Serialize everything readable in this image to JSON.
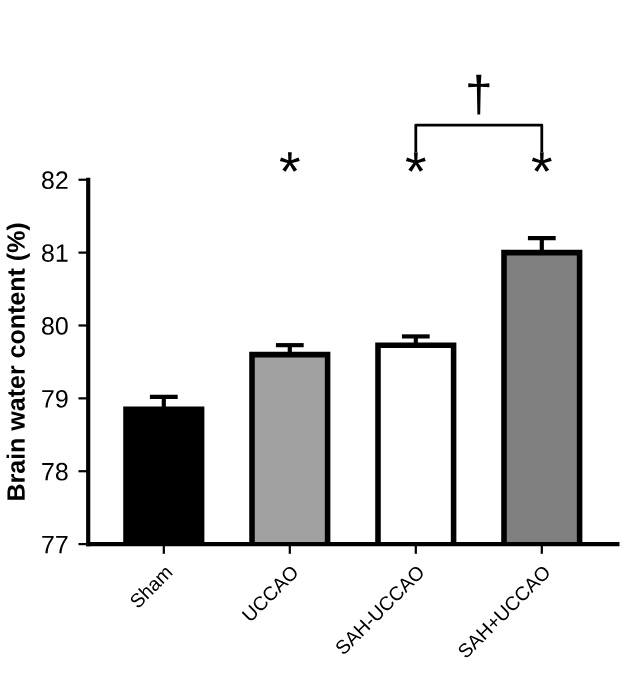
{
  "chart_data": {
    "type": "bar",
    "ylabel": "Brain water content (%)",
    "categories": [
      "Sham",
      "UCCAO",
      "SAH-UCCAO",
      "SAH+UCCAO"
    ],
    "values": [
      78.85,
      79.6,
      79.73,
      81.0
    ],
    "errors": [
      0.17,
      0.13,
      0.12,
      0.2
    ],
    "colors": [
      "#000000",
      "#a0a0a0",
      "#ffffff",
      "#808080"
    ],
    "ylim": [
      77,
      82
    ],
    "yticks": [
      77,
      78,
      79,
      80,
      81,
      82
    ],
    "grid": false,
    "legend": false,
    "annotations": [
      "*",
      "*",
      "*",
      "†"
    ]
  }
}
